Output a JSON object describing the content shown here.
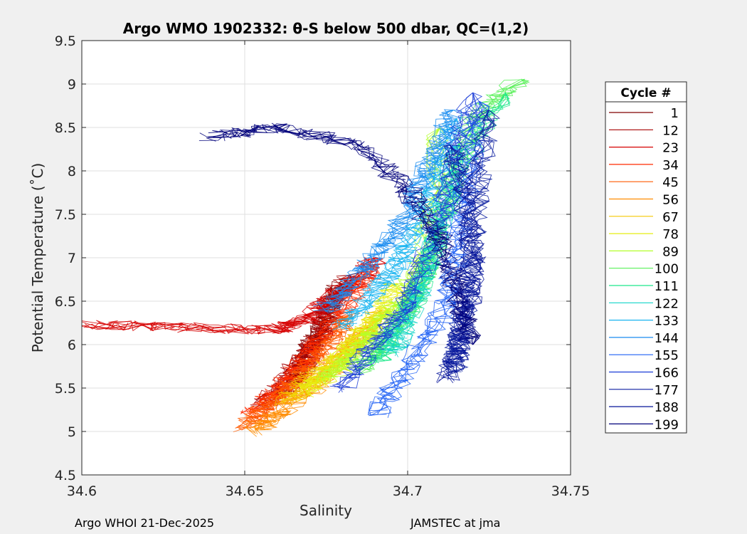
{
  "chart_data": {
    "type": "line",
    "title": "Argo WMO 1902332: θ-S below 500 dbar,  QC=(1,2)",
    "xlabel": "Salinity",
    "ylabel": "Potential Temperature (˚C)",
    "xlim": [
      34.6,
      34.75
    ],
    "ylim": [
      4.5,
      9.5
    ],
    "xticks": [
      34.6,
      34.65,
      34.7,
      34.75
    ],
    "xtick_labels": [
      "34.6",
      "34.65",
      "34.7",
      "34.75"
    ],
    "yticks": [
      4.5,
      5,
      5.5,
      6,
      6.5,
      7,
      7.5,
      8,
      8.5,
      9,
      9.5
    ],
    "ytick_labels": [
      "4.5",
      "5",
      "5.5",
      "6",
      "6.5",
      "7",
      "7.5",
      "8",
      "8.5",
      "9",
      "9.5"
    ],
    "grid": true,
    "legend_title": "Cycle #",
    "legend_position": "right-outside",
    "legend": [
      {
        "label": "1",
        "color": "#800000"
      },
      {
        "label": "12",
        "color": "#a70000"
      },
      {
        "label": "23",
        "color": "#d60000"
      },
      {
        "label": "34",
        "color": "#ff2a00"
      },
      {
        "label": "45",
        "color": "#ff5a00"
      },
      {
        "label": "56",
        "color": "#ff8c00"
      },
      {
        "label": "67",
        "color": "#f5c800"
      },
      {
        "label": "78",
        "color": "#e6ee10"
      },
      {
        "label": "89",
        "color": "#b4ff2a"
      },
      {
        "label": "100",
        "color": "#55f055"
      },
      {
        "label": "111",
        "color": "#1ee88c"
      },
      {
        "label": "122",
        "color": "#10d4c8"
      },
      {
        "label": "133",
        "color": "#18b4f0"
      },
      {
        "label": "144",
        "color": "#1a8cf0"
      },
      {
        "label": "155",
        "color": "#1f60f5"
      },
      {
        "label": "166",
        "color": "#1a3cd7"
      },
      {
        "label": "177",
        "color": "#0c1ea0"
      },
      {
        "label": "188",
        "color": "#06149a"
      },
      {
        "label": "199",
        "color": "#00007a"
      }
    ],
    "series": [
      {
        "name": "1",
        "color": "#800000",
        "x": [
          34.662,
          34.668,
          34.67,
          34.674,
          34.676,
          34.68
        ],
        "y": [
          5.4,
          5.7,
          5.95,
          6.2,
          6.45,
          6.7
        ]
      },
      {
        "name": "12",
        "color": "#a70000",
        "x": [
          34.655,
          34.663,
          34.669,
          34.673,
          34.678,
          34.682
        ],
        "y": [
          5.3,
          5.6,
          5.9,
          6.15,
          6.5,
          6.8
        ]
      },
      {
        "name": "23",
        "color": "#d60000",
        "x": [
          34.603,
          34.63,
          34.66,
          34.67,
          34.675,
          34.685,
          34.69
        ],
        "y": [
          6.23,
          6.2,
          6.17,
          6.3,
          6.5,
          6.75,
          7.0
        ]
      },
      {
        "name": "34",
        "color": "#ff2a00",
        "x": [
          34.652,
          34.66,
          34.667,
          34.672,
          34.68,
          34.69
        ],
        "y": [
          5.2,
          5.45,
          5.75,
          6.0,
          6.4,
          6.9
        ]
      },
      {
        "name": "45",
        "color": "#ff5a00",
        "x": [
          34.65,
          34.658,
          34.666,
          34.675,
          34.683
        ],
        "y": [
          5.05,
          5.3,
          5.6,
          5.95,
          6.35
        ]
      },
      {
        "name": "56",
        "color": "#ff8c00",
        "x": [
          34.653,
          34.662,
          34.672,
          34.68,
          34.688
        ],
        "y": [
          5.0,
          5.25,
          5.55,
          5.85,
          6.2
        ]
      },
      {
        "name": "67",
        "color": "#f5c800",
        "x": [
          34.663,
          34.67,
          34.678,
          34.686,
          34.692
        ],
        "y": [
          5.35,
          5.6,
          5.85,
          6.1,
          6.4
        ]
      },
      {
        "name": "78",
        "color": "#e6ee10",
        "x": [
          34.668,
          34.675,
          34.682,
          34.69,
          34.697
        ],
        "y": [
          5.45,
          5.65,
          5.95,
          6.3,
          6.7
        ]
      },
      {
        "name": "89",
        "color": "#b4ff2a",
        "x": [
          34.675,
          34.683,
          34.69,
          34.698,
          34.705,
          34.71
        ],
        "y": [
          5.6,
          5.85,
          6.15,
          6.5,
          7.0,
          8.5
        ]
      },
      {
        "name": "100",
        "color": "#55f055",
        "x": [
          34.685,
          34.692,
          34.7,
          34.706,
          34.712,
          34.72,
          34.735
        ],
        "y": [
          5.7,
          6.0,
          6.4,
          6.9,
          7.6,
          8.6,
          9.05
        ]
      },
      {
        "name": "111",
        "color": "#1ee88c",
        "x": [
          34.69,
          34.697,
          34.703,
          34.708,
          34.715,
          34.73
        ],
        "y": [
          5.8,
          6.2,
          6.6,
          7.1,
          8.0,
          8.9
        ]
      },
      {
        "name": "122",
        "color": "#10d4c8",
        "x": [
          34.695,
          34.7,
          34.706,
          34.71,
          34.716
        ],
        "y": [
          5.9,
          6.3,
          6.8,
          7.4,
          8.3
        ]
      },
      {
        "name": "133",
        "color": "#18b4f0",
        "x": [
          34.68,
          34.69,
          34.698,
          34.704,
          34.71,
          34.715
        ],
        "y": [
          6.2,
          6.6,
          7.0,
          7.5,
          8.0,
          8.6
        ]
      },
      {
        "name": "144",
        "color": "#1a8cf0",
        "x": [
          34.675,
          34.685,
          34.695,
          34.702,
          34.708,
          34.714
        ],
        "y": [
          6.4,
          6.8,
          7.2,
          7.7,
          8.2,
          8.7
        ]
      },
      {
        "name": "155",
        "color": "#1f60f5",
        "x": [
          34.69,
          34.7,
          34.71,
          34.715,
          34.718,
          34.722
        ],
        "y": [
          5.2,
          5.7,
          6.3,
          7.0,
          7.8,
          8.8
        ]
      },
      {
        "name": "166",
        "color": "#1a3cd7",
        "x": [
          34.68,
          34.69,
          34.7,
          34.708,
          34.714,
          34.72
        ],
        "y": [
          5.5,
          6.0,
          6.5,
          7.2,
          8.0,
          8.9
        ]
      },
      {
        "name": "177",
        "color": "#0c1ea0",
        "x": [
          34.714,
          34.716,
          34.718,
          34.72,
          34.722,
          34.725
        ],
        "y": [
          5.7,
          6.1,
          6.6,
          7.2,
          7.9,
          8.7
        ]
      },
      {
        "name": "188",
        "color": "#06149a",
        "x": [
          34.712,
          34.716,
          34.719,
          34.72,
          34.718,
          34.713
        ],
        "y": [
          5.6,
          6.0,
          6.5,
          7.0,
          7.6,
          8.3
        ]
      },
      {
        "name": "199",
        "color": "#00007a",
        "x": [
          34.64,
          34.66,
          34.685,
          34.7,
          34.71,
          34.715,
          34.72
        ],
        "y": [
          8.4,
          8.5,
          8.3,
          7.8,
          7.2,
          6.6,
          6.0
        ]
      }
    ]
  },
  "footer": {
    "left": "Argo WHOI 21-Dec-2025",
    "right": "JAMSTEC at jma"
  }
}
